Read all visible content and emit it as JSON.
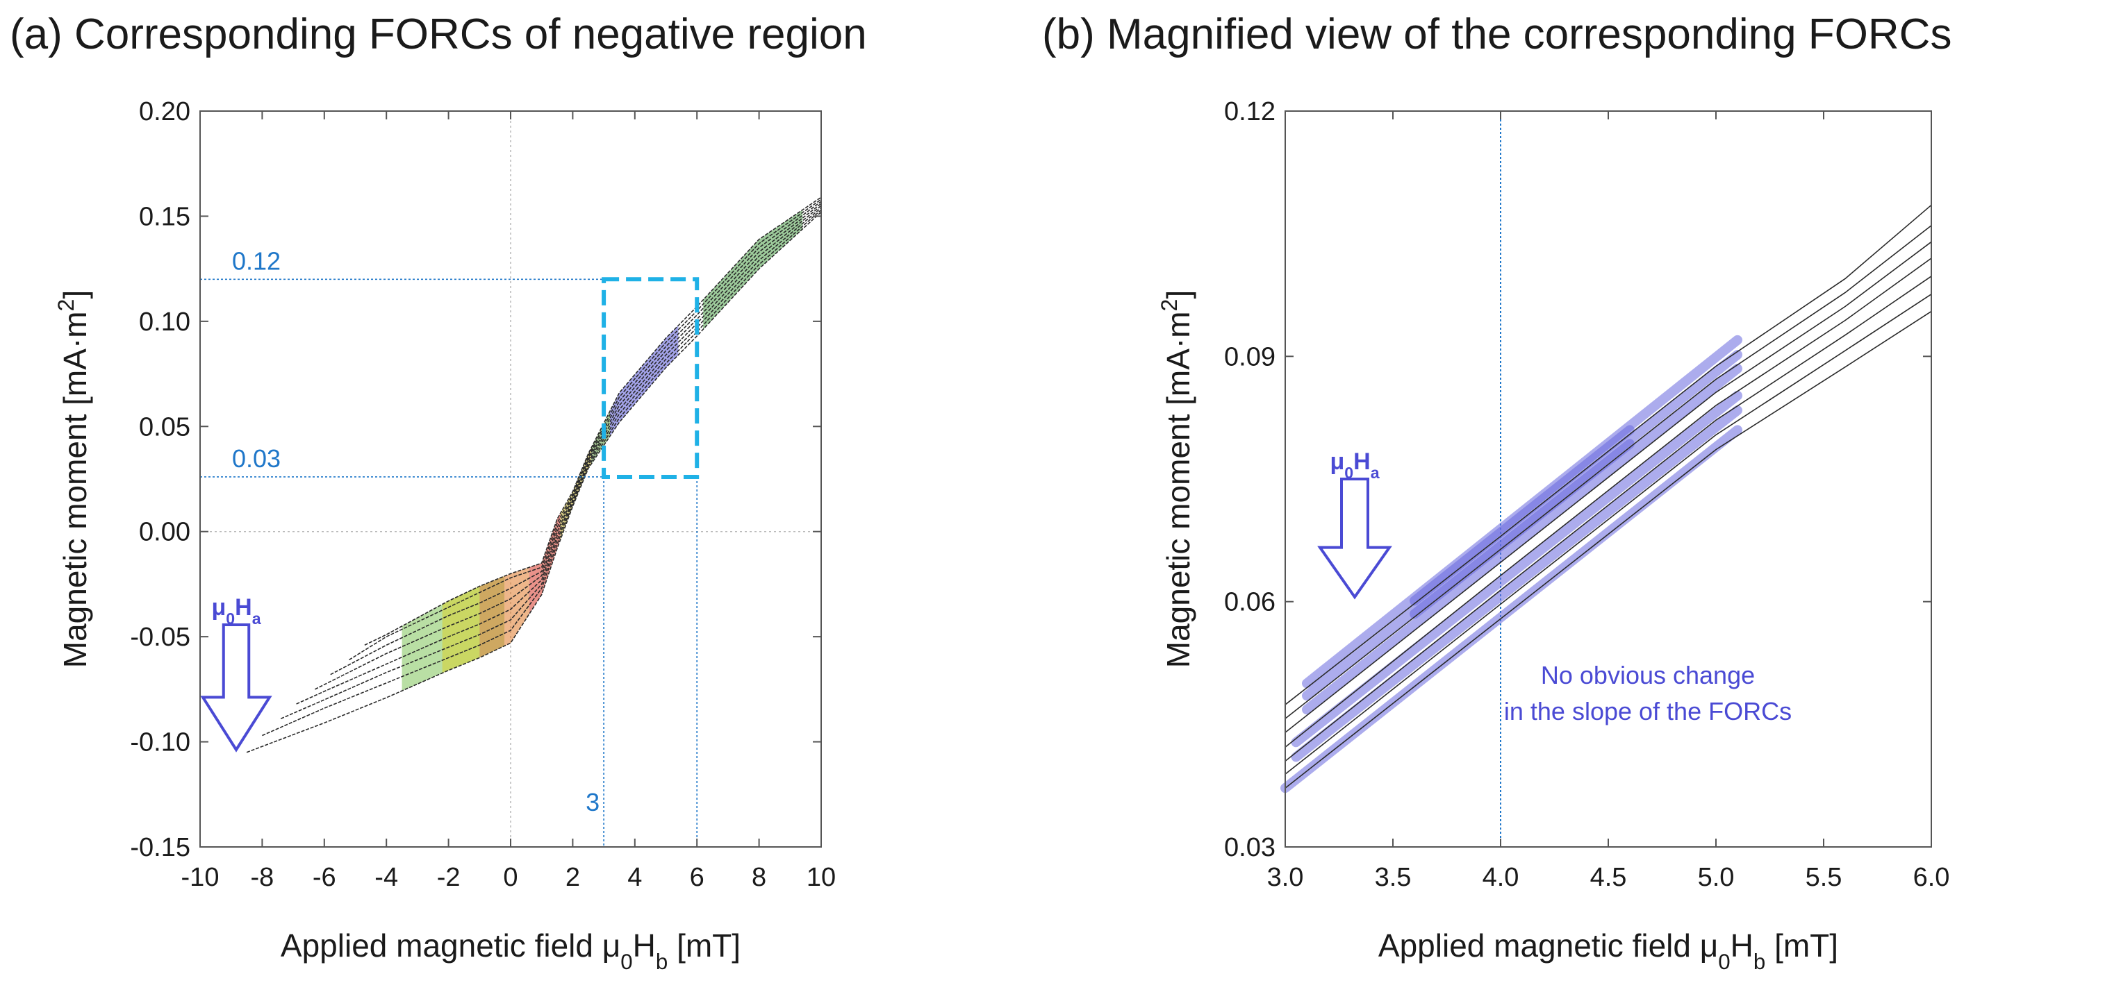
{
  "panel_a": {
    "title": "(a) Corresponding FORCs of negative region"
  },
  "panel_b": {
    "title": "(b) Magnified view of the corresponding FORCs"
  },
  "chart_data": [
    {
      "type": "line",
      "title": "(a) Corresponding FORCs of negative region",
      "xlabel": "Applied magnetic field μ0Hb [mT]",
      "ylabel": "Magnetic moment [mA·m2]",
      "xlim": [
        -10,
        10
      ],
      "ylim": [
        -0.15,
        0.2
      ],
      "xticks": [
        -10,
        -8,
        -6,
        -4,
        -2,
        0,
        2,
        4,
        6,
        8,
        10
      ],
      "yticks": [
        -0.15,
        -0.1,
        -0.05,
        0.0,
        0.05,
        0.1,
        0.15,
        0.2
      ],
      "ytick_labels": [
        "-0.15",
        "-0.10",
        "-0.05",
        "0.00",
        "0.05",
        "0.10",
        "0.15",
        "0.20"
      ],
      "grid": true,
      "annotations": {
        "h_line_upper": {
          "label": "0.12",
          "y": 0.12
        },
        "h_line_lower": {
          "label": "0.03",
          "y": 0.026
        },
        "v_line_left": {
          "label": "3",
          "x": 3
        },
        "v_line_right": {
          "x": 6
        },
        "zoom_box": {
          "x": [
            3,
            6
          ],
          "y": [
            0.026,
            0.12
          ]
        },
        "arrow_label": "μ0Ha"
      },
      "series": [
        {
          "values": [
            [
              -8.5,
              -0.105
            ],
            [
              -6,
              -0.091
            ],
            [
              -4,
              -0.079
            ],
            [
              -2,
              -0.066
            ],
            [
              -1,
              -0.06
            ],
            [
              0,
              -0.053
            ],
            [
              1,
              -0.03
            ],
            [
              1.5,
              -0.008
            ],
            [
              2,
              0.012
            ],
            [
              2.5,
              0.03
            ],
            [
              3.5,
              0.052
            ],
            [
              5,
              0.078
            ],
            [
              6,
              0.093
            ],
            [
              8,
              0.125
            ],
            [
              10,
              0.152
            ]
          ]
        },
        {
          "values": [
            [
              -8,
              -0.097
            ],
            [
              -6,
              -0.084
            ],
            [
              -4,
              -0.072
            ],
            [
              -2,
              -0.06
            ],
            [
              -1,
              -0.054
            ],
            [
              0,
              -0.047
            ],
            [
              1,
              -0.027
            ],
            [
              1.5,
              -0.006
            ],
            [
              2,
              0.013
            ],
            [
              2.5,
              0.031
            ],
            [
              3.5,
              0.054
            ],
            [
              5,
              0.08
            ],
            [
              6,
              0.095
            ],
            [
              8,
              0.127
            ],
            [
              10,
              0.153
            ]
          ]
        },
        {
          "values": [
            [
              -7.4,
              -0.089
            ],
            [
              -6,
              -0.08
            ],
            [
              -4,
              -0.067
            ],
            [
              -2,
              -0.055
            ],
            [
              -1,
              -0.049
            ],
            [
              0,
              -0.042
            ],
            [
              1,
              -0.025
            ],
            [
              1.5,
              -0.004
            ],
            [
              2,
              0.014
            ],
            [
              2.5,
              0.032
            ],
            [
              3.5,
              0.056
            ],
            [
              5,
              0.082
            ],
            [
              6,
              0.097
            ],
            [
              8,
              0.129
            ],
            [
              10,
              0.154
            ]
          ]
        },
        {
          "values": [
            [
              -6.9,
              -0.082
            ],
            [
              -6,
              -0.076
            ],
            [
              -4,
              -0.063
            ],
            [
              -2,
              -0.05
            ],
            [
              -1,
              -0.044
            ],
            [
              0,
              -0.037
            ],
            [
              1,
              -0.023
            ],
            [
              1.5,
              -0.002
            ],
            [
              2,
              0.015
            ],
            [
              2.5,
              0.033
            ],
            [
              3.5,
              0.058
            ],
            [
              5,
              0.084
            ],
            [
              6,
              0.099
            ],
            [
              8,
              0.131
            ],
            [
              10,
              0.155
            ]
          ]
        },
        {
          "values": [
            [
              -6.3,
              -0.075
            ],
            [
              -4,
              -0.058
            ],
            [
              -2,
              -0.045
            ],
            [
              -1,
              -0.039
            ],
            [
              0,
              -0.032
            ],
            [
              1,
              -0.021
            ],
            [
              1.5,
              0.0
            ],
            [
              2,
              0.016
            ],
            [
              2.5,
              0.034
            ],
            [
              3.5,
              0.06
            ],
            [
              5,
              0.086
            ],
            [
              6,
              0.101
            ],
            [
              8,
              0.133
            ],
            [
              10,
              0.156
            ]
          ]
        },
        {
          "values": [
            [
              -5.8,
              -0.068
            ],
            [
              -4,
              -0.054
            ],
            [
              -2,
              -0.04
            ],
            [
              -1,
              -0.034
            ],
            [
              0,
              -0.027
            ],
            [
              1,
              -0.019
            ],
            [
              1.5,
              0.002
            ],
            [
              2,
              0.017
            ],
            [
              2.5,
              0.035
            ],
            [
              3.5,
              0.062
            ],
            [
              5,
              0.088
            ],
            [
              6,
              0.103
            ],
            [
              8,
              0.135
            ],
            [
              10,
              0.157
            ]
          ]
        },
        {
          "values": [
            [
              -5.2,
              -0.061
            ],
            [
              -4,
              -0.05
            ],
            [
              -2,
              -0.036
            ],
            [
              -1,
              -0.029
            ],
            [
              0,
              -0.022
            ],
            [
              1,
              -0.017
            ],
            [
              1.5,
              0.004
            ],
            [
              2,
              0.018
            ],
            [
              2.5,
              0.036
            ],
            [
              3.5,
              0.064
            ],
            [
              5,
              0.09
            ],
            [
              6,
              0.105
            ],
            [
              8,
              0.137
            ],
            [
              10,
              0.158
            ]
          ]
        },
        {
          "values": [
            [
              -4.7,
              -0.054
            ],
            [
              -4,
              -0.049
            ],
            [
              -2,
              -0.033
            ],
            [
              -1,
              -0.026
            ],
            [
              0,
              -0.02
            ],
            [
              1,
              -0.015
            ],
            [
              1.5,
              0.006
            ],
            [
              2,
              0.019
            ],
            [
              2.5,
              0.037
            ],
            [
              3.5,
              0.066
            ],
            [
              5,
              0.092
            ],
            [
              6,
              0.107
            ],
            [
              8,
              0.139
            ],
            [
              10,
              0.159
            ]
          ]
        }
      ]
    },
    {
      "type": "line",
      "title": "(b) Magnified view of the corresponding FORCs",
      "xlabel": "Applied magnetic field μ0Hb [mT]",
      "ylabel": "Magnetic moment [mA·m2]",
      "xlim": [
        3.0,
        6.0
      ],
      "ylim": [
        0.03,
        0.12
      ],
      "xticks": [
        3.0,
        3.5,
        4.0,
        4.5,
        5.0,
        5.5,
        6.0
      ],
      "xtick_labels": [
        "3.0",
        "3.5",
        "4.0",
        "4.5",
        "5.0",
        "5.5",
        "6.0"
      ],
      "yticks": [
        0.03,
        0.06,
        0.09,
        0.12
      ],
      "ytick_labels": [
        "0.03",
        "0.06",
        "0.09",
        "0.12"
      ],
      "grid": false,
      "annotations": {
        "v_line": {
          "x": 4.0
        },
        "arrow_label": "μ0Ha",
        "note_line1": "No obvious change",
        "note_line2": "in the slope of the FORCs"
      },
      "series": [
        {
          "values": [
            [
              3.0,
              0.0474
            ],
            [
              4.0,
              0.068
            ],
            [
              5.0,
              0.0888
            ],
            [
              5.6,
              0.0995
            ],
            [
              6.0,
              0.1085
            ]
          ]
        },
        {
          "values": [
            [
              3.0,
              0.0457
            ],
            [
              4.0,
              0.0664
            ],
            [
              5.0,
              0.0872
            ],
            [
              5.6,
              0.0978
            ],
            [
              6.0,
              0.106
            ]
          ]
        },
        {
          "values": [
            [
              3.0,
              0.044
            ],
            [
              4.0,
              0.0648
            ],
            [
              5.0,
              0.0856
            ],
            [
              5.6,
              0.0961
            ],
            [
              6.0,
              0.104
            ]
          ]
        },
        {
          "values": [
            [
              3.0,
              0.0422
            ],
            [
              4.0,
              0.0632
            ],
            [
              5.0,
              0.084
            ],
            [
              5.6,
              0.0944
            ],
            [
              6.0,
              0.102
            ]
          ]
        },
        {
          "values": [
            [
              3.0,
              0.0405
            ],
            [
              4.0,
              0.0614
            ],
            [
              5.0,
              0.0822
            ],
            [
              5.6,
              0.0926
            ],
            [
              6.0,
              0.0998
            ]
          ]
        },
        {
          "values": [
            [
              3.0,
              0.0389
            ],
            [
              4.0,
              0.0597
            ],
            [
              5.0,
              0.0804
            ],
            [
              5.6,
              0.0907
            ],
            [
              6.0,
              0.0976
            ]
          ]
        },
        {
          "values": [
            [
              3.0,
              0.0372
            ],
            [
              4.0,
              0.0579
            ],
            [
              5.0,
              0.0786
            ],
            [
              5.6,
              0.0887
            ],
            [
              6.0,
              0.0955
            ]
          ]
        }
      ],
      "highlights": [
        {
          "x": [
            3.1,
            5.1
          ],
          "y": [
            0.05,
            0.092
          ]
        },
        {
          "x": [
            3.1,
            5.1
          ],
          "y": [
            0.0485,
            0.0902
          ]
        },
        {
          "x": [
            3.1,
            5.1
          ],
          "y": [
            0.0468,
            0.0885
          ]
        },
        {
          "x": [
            3.6,
            4.6
          ],
          "y": [
            0.0601,
            0.081
          ]
        },
        {
          "x": [
            3.6,
            4.6
          ],
          "y": [
            0.0585,
            0.0793
          ]
        },
        {
          "x": [
            3.05,
            5.1
          ],
          "y": [
            0.0428,
            0.0852
          ]
        },
        {
          "x": [
            3.05,
            5.1
          ],
          "y": [
            0.041,
            0.0834
          ]
        },
        {
          "x": [
            3.0,
            5.1
          ],
          "y": [
            0.0372,
            0.081
          ]
        }
      ]
    }
  ],
  "colors": {
    "axis": "#555555",
    "annotation_blue": "#1f77c9",
    "zoom_box": "#1fb1e6",
    "arrow": "#4a4ad4",
    "highlight": "#6a6adf",
    "curve": "#2a2a2a"
  }
}
